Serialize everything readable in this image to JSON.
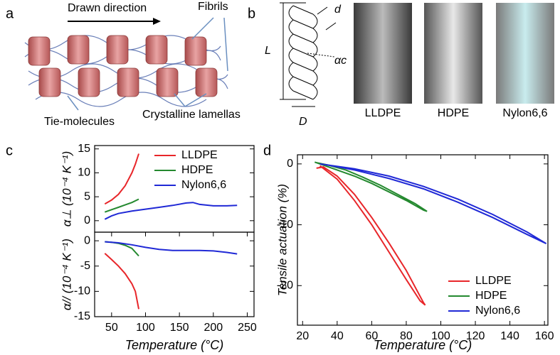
{
  "figure": {
    "panel_labels": [
      "a",
      "b",
      "c",
      "d"
    ],
    "a": {
      "arrow": "Drawn direction",
      "fibrils": "Fibrils",
      "tie": "Tie-molecules",
      "lamellas": "Crystalline lamellas"
    },
    "b": {
      "L": "L",
      "d": "d",
      "alpha": "αc",
      "D": "D",
      "photos": [
        "LLDPE",
        "HDPE",
        "Nylon6,6"
      ]
    }
  },
  "chart_data": [
    {
      "type": "line",
      "ylabel": "α⊥ (10⁻⁴ K⁻¹)",
      "xlim": [
        25,
        260
      ],
      "ylim": [
        -2.4,
        15.7
      ],
      "yticks": [
        0,
        5,
        10,
        15
      ],
      "legend": "upper right",
      "series": [
        {
          "name": "LLDPE",
          "color": "#e8262a",
          "x": [
            40,
            50,
            60,
            70,
            80,
            85,
            90
          ],
          "values": [
            3.5,
            4.3,
            5.5,
            7.3,
            10,
            11.8,
            14
          ]
        },
        {
          "name": "HDPE",
          "color": "#24892f",
          "x": [
            40,
            50,
            60,
            70,
            80,
            90
          ],
          "values": [
            1.8,
            2.3,
            2.8,
            3.3,
            3.8,
            4.5
          ]
        },
        {
          "name": "Nylon6,6",
          "color": "#2029d6",
          "x": [
            40,
            50,
            60,
            80,
            100,
            120,
            140,
            160,
            170,
            180,
            200,
            220,
            235
          ],
          "values": [
            0.3,
            1,
            1.5,
            2,
            2.4,
            2.8,
            3.2,
            3.7,
            3.8,
            3.4,
            3.1,
            3.1,
            3.2
          ]
        }
      ]
    },
    {
      "type": "line",
      "ylabel": "α// (10⁻⁴ K⁻¹)",
      "xlabel": "Temperature (°C)",
      "xlim": [
        25,
        260
      ],
      "ylim": [
        -15,
        1.7
      ],
      "xticks": [
        50,
        100,
        150,
        200,
        250
      ],
      "yticks": [
        0,
        -5,
        -10,
        -15
      ],
      "series": [
        {
          "name": "LLDPE",
          "color": "#e8262a",
          "x": [
            40,
            50,
            60,
            70,
            80,
            85,
            90
          ],
          "values": [
            -2.5,
            -3.7,
            -5,
            -6.5,
            -8.5,
            -10,
            -13.5
          ]
        },
        {
          "name": "HDPE",
          "color": "#24892f",
          "x": [
            40,
            50,
            60,
            70,
            80,
            90
          ],
          "values": [
            -0.2,
            -0.3,
            -0.5,
            -0.9,
            -1.5,
            -3
          ]
        },
        {
          "name": "Nylon6,6",
          "color": "#2029d6",
          "x": [
            40,
            60,
            80,
            100,
            120,
            140,
            160,
            180,
            200,
            220,
            235
          ],
          "values": [
            -0.2,
            -0.4,
            -0.8,
            -1.3,
            -1.7,
            -1.9,
            -1.9,
            -1.9,
            -2,
            -2.3,
            -2.6
          ]
        }
      ]
    },
    {
      "type": "line",
      "ylabel": "Tensile actuation (%)",
      "xlabel": "Temperature (°C)",
      "xlim": [
        17,
        162
      ],
      "ylim": [
        -26.5,
        1.5
      ],
      "xticks": [
        20,
        40,
        60,
        80,
        100,
        120,
        140,
        160
      ],
      "yticks": [
        0,
        -10,
        -20
      ],
      "legend": "lower right",
      "series": [
        {
          "name": "LLDPE",
          "color": "#e8262a",
          "x": [
            30,
            40,
            50,
            60,
            70,
            80,
            88,
            91,
            90,
            80,
            70,
            60,
            50,
            40,
            32,
            28
          ],
          "values": [
            -0.3,
            -2.5,
            -6,
            -10,
            -14.5,
            -19,
            -22.5,
            -23.2,
            -22.8,
            -17.5,
            -13,
            -8.8,
            -5,
            -2,
            -0.5,
            -0.7
          ]
        },
        {
          "name": "HDPE",
          "color": "#24892f",
          "x": [
            27,
            40,
            50,
            60,
            70,
            80,
            90,
            92,
            85,
            75,
            65,
            55,
            45,
            35,
            28
          ],
          "values": [
            0.3,
            -1,
            -2,
            -3.2,
            -4.6,
            -6,
            -7.6,
            -7.8,
            -6.5,
            -5,
            -3.5,
            -2.2,
            -1,
            -0.2,
            0.2
          ]
        },
        {
          "name": "Nylon6,6",
          "color": "#2029d6",
          "x": [
            30,
            50,
            70,
            90,
            110,
            130,
            150,
            161,
            150,
            130,
            110,
            90,
            70,
            50,
            35
          ],
          "values": [
            0,
            -0.8,
            -2,
            -3.7,
            -5.8,
            -8.3,
            -11.2,
            -13.1,
            -11.6,
            -8.8,
            -6.3,
            -4.1,
            -2.4,
            -1,
            -0.2
          ]
        }
      ]
    }
  ]
}
